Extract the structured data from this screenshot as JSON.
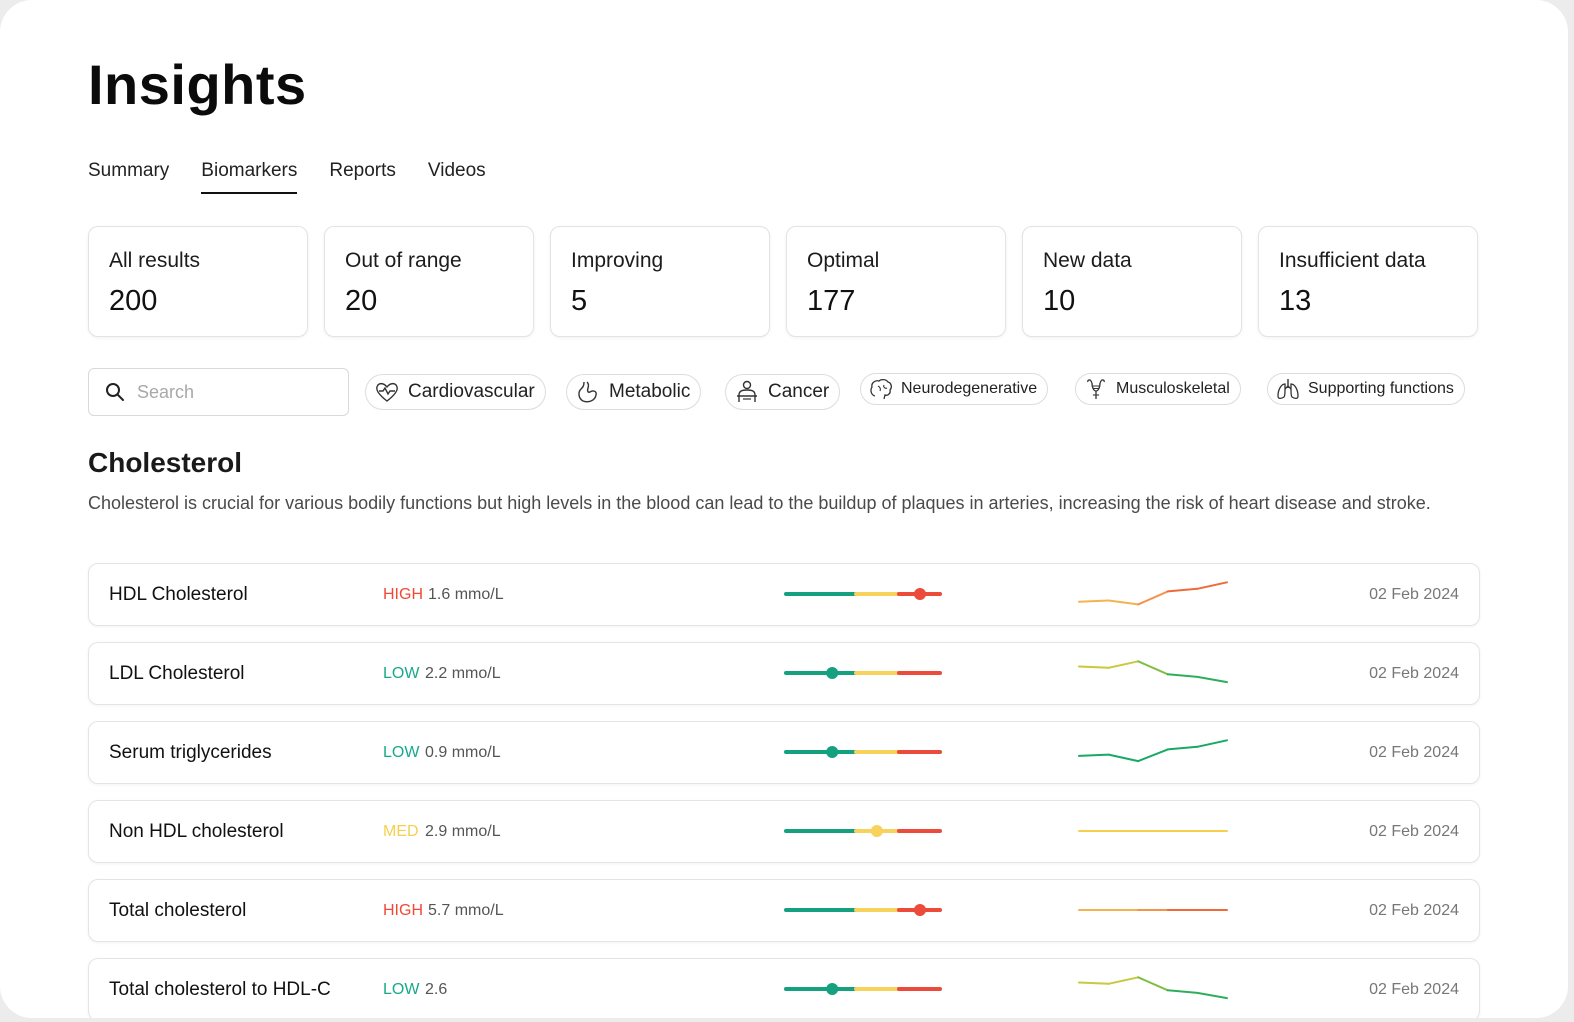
{
  "page": {
    "title": "Insights"
  },
  "tabs": [
    {
      "label": "Summary",
      "active": false
    },
    {
      "label": "Biomarkers",
      "active": true
    },
    {
      "label": "Reports",
      "active": false
    },
    {
      "label": "Videos",
      "active": false
    }
  ],
  "stats": [
    {
      "label": "All results",
      "value": "200"
    },
    {
      "label": "Out of range",
      "value": "20"
    },
    {
      "label": "Improving",
      "value": "5"
    },
    {
      "label": "Optimal",
      "value": "177"
    },
    {
      "label": "New data",
      "value": "10"
    },
    {
      "label": "Insufficient data",
      "value": "13"
    }
  ],
  "search": {
    "placeholder": "Search",
    "value": "",
    "icon": "search-icon"
  },
  "filters": [
    {
      "label": "Cardiovascular",
      "icon": "heart-pulse-icon"
    },
    {
      "label": "Metabolic",
      "icon": "stomach-icon"
    },
    {
      "label": "Cancer",
      "icon": "person-scan-icon"
    },
    {
      "label": "Neurodegenerative",
      "icon": "brain-icon"
    },
    {
      "label": "Musculoskeletal",
      "icon": "bone-muscle-icon"
    },
    {
      "label": "Supporting functions",
      "icon": "lungs-icon"
    }
  ],
  "section": {
    "title": "Cholesterol",
    "description": "Cholesterol is crucial for various bodily functions but high levels in the blood can lead to the buildup of plaques in arteries, increasing the risk of heart disease and stroke."
  },
  "colors": {
    "high": "#ef4a36",
    "low": "#17a98a",
    "med": "#f6cf4e",
    "range_green": "#15a080",
    "range_yellow": "#f7d25c",
    "range_red": "#ec4a3a"
  },
  "biomarkers": [
    {
      "name": "HDL Cholesterol",
      "status": "HIGH",
      "value": "1.6 mmo/L",
      "marker": 0.87,
      "trend": [
        0.2,
        0.25,
        0.1,
        0.6,
        0.7,
        0.95
      ],
      "date": "02 Feb 2024"
    },
    {
      "name": "LDL Cholesterol",
      "status": "LOW",
      "value": "2.2 mmo/L",
      "marker": 0.3,
      "trend": [
        0.75,
        0.7,
        0.95,
        0.45,
        0.35,
        0.15
      ],
      "date": "02 Feb 2024"
    },
    {
      "name": "Serum triglycerides",
      "status": "LOW",
      "value": "0.9 mmo/L",
      "marker": 0.3,
      "trend": [
        0.35,
        0.4,
        0.15,
        0.6,
        0.7,
        0.95
      ],
      "date": "02 Feb 2024"
    },
    {
      "name": "Non HDL cholesterol",
      "status": "MED",
      "value": "2.9 mmo/L",
      "marker": 0.59,
      "trend": [
        0.5,
        0.5,
        0.5,
        0.5,
        0.5,
        0.5
      ],
      "date": "02 Feb 2024"
    },
    {
      "name": "Total cholesterol",
      "status": "HIGH",
      "value": "5.7 mmo/L",
      "marker": 0.87,
      "trend": [
        0.5,
        0.5,
        0.5,
        0.5,
        0.5,
        0.5
      ],
      "date": "02 Feb 2024"
    },
    {
      "name": "Total cholesterol to HDL-C",
      "status": "LOW",
      "value": "2.6",
      "marker": 0.3,
      "trend": [
        0.75,
        0.7,
        0.95,
        0.45,
        0.35,
        0.15
      ],
      "date": "02 Feb 2024"
    }
  ]
}
